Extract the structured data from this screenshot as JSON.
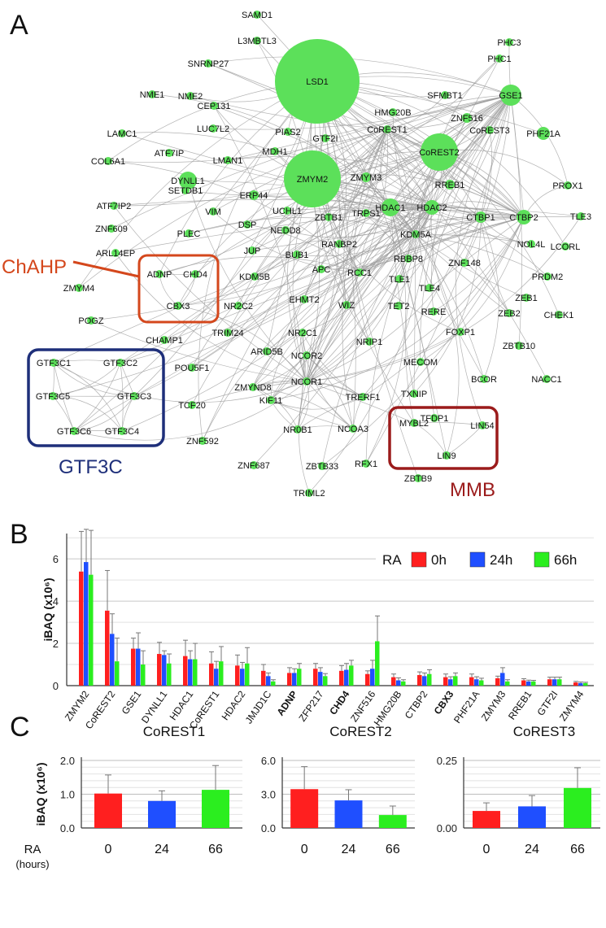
{
  "figure": {
    "panel_a": "A",
    "panel_b": "B",
    "panel_c": "C"
  },
  "network": {
    "nodes": [
      "SAMD1",
      "L3MBTL3",
      "SNRNP27",
      "NME1",
      "NME2",
      "CEP131",
      "LUC7L2",
      "LAMC1",
      "COL6A1",
      "ATF7IP",
      "LMAN1",
      "MDH1",
      "PIAS2",
      "GTF2I",
      "LSD1",
      "HMG20B",
      "SFMBT1",
      "PHC1",
      "PHC3",
      "GSE1",
      "ZNF516",
      "CoREST1",
      "CoREST2",
      "CoREST3",
      "PHF21A",
      "DYNLL1",
      "ZMYM2",
      "ZMYM3",
      "RREB1",
      "ATF7IP2",
      "SETDB1",
      "ERP44",
      "VIM",
      "UCHL1",
      "ZBTB1",
      "TRPS1",
      "HDAC1",
      "HDAC2",
      "PROX1",
      "CTBP1",
      "CTBP2",
      "TLE3",
      "ZNF609",
      "PLEC",
      "DSP",
      "NEDD8",
      "KDM5A",
      "NOL4L",
      "LCORL",
      "ARL14EP",
      "JUP",
      "BUB1",
      "RANBP2",
      "RBBP8",
      "ZNF148",
      "PRDM2",
      "ADNP",
      "CHD4",
      "KDM5B",
      "APC",
      "RCC1",
      "TLE1",
      "TLE4",
      "ZEB1",
      "ZMYM4",
      "CBX3",
      "NR2C2",
      "EHMT2",
      "WIZ",
      "TET2",
      "RERE",
      "ZEB2",
      "CHEK1",
      "POGZ",
      "TRIM24",
      "NR2C1",
      "NRIP1",
      "FOXP1",
      "ZBTB10",
      "CHAMP1",
      "ARID5B",
      "NCOR2",
      "MECOM",
      "BCOR",
      "NACC1",
      "GTF3C1",
      "GTF3C2",
      "GTF3C5",
      "GTF3C3",
      "GTF3C6",
      "GTF3C4",
      "POU5F1",
      "ZMYND8",
      "NCOR1",
      "TRERF1",
      "TXNIP",
      "TFDP1",
      "TCF20",
      "KIF11",
      "NR0B1",
      "NCOA3",
      "MYBL2",
      "LIN54",
      "LIN9",
      "ZNF592",
      "ZNF687",
      "ZBTB33",
      "RFX1",
      "ZBTB9",
      "TRIML2"
    ],
    "complexes": {
      "chahp": "ChAHP",
      "gtf3c": "GTF3C",
      "mmb": "MMB"
    }
  },
  "chart_data": [
    {
      "type": "bar",
      "panel": "B",
      "ylabel": "iBAQ (x10⁶)",
      "ylim": [
        0,
        7.2
      ],
      "yticks": [
        0,
        2,
        4,
        6
      ],
      "legend_title": "RA",
      "legend_position": "top-right",
      "categories": [
        "ZMYM2",
        "CoREST2",
        "GSE1",
        "DYNLL1",
        "HDAC1",
        "CoREST1",
        "HDAC2",
        "JMJD1C",
        "ADNP",
        "ZFP217",
        "CHD4",
        "ZNF516",
        "HMG20B",
        "CTBP2",
        "CBX3",
        "PHF21A",
        "ZMYM3",
        "RREB1",
        "GTF2I",
        "ZMYM4"
      ],
      "highlighted": [
        "ADNP",
        "CHD4",
        "CBX3"
      ],
      "series": [
        {
          "name": "0h",
          "color": "#ff1f1f",
          "values": [
            5.4,
            3.55,
            1.75,
            1.5,
            1.4,
            1.05,
            0.95,
            0.7,
            0.6,
            0.8,
            0.7,
            0.55,
            0.4,
            0.5,
            0.4,
            0.4,
            0.35,
            0.25,
            0.3,
            0.15
          ],
          "errors": [
            1.9,
            1.9,
            0.5,
            0.55,
            0.75,
            0.55,
            0.5,
            0.3,
            0.25,
            0.25,
            0.25,
            0.15,
            0.15,
            0.15,
            0.15,
            0.15,
            0.1,
            0.08,
            0.1,
            0.05
          ]
        },
        {
          "name": "24h",
          "color": "#1f4fff",
          "values": [
            5.85,
            2.45,
            1.75,
            1.45,
            1.25,
            0.8,
            0.8,
            0.45,
            0.6,
            0.65,
            0.75,
            0.8,
            0.25,
            0.45,
            0.3,
            0.3,
            0.6,
            0.2,
            0.3,
            0.12
          ],
          "errors": [
            1.55,
            0.95,
            0.75,
            0.2,
            0.4,
            0.35,
            0.3,
            0.15,
            0.2,
            0.2,
            0.3,
            0.4,
            0.12,
            0.15,
            0.12,
            0.12,
            0.25,
            0.06,
            0.1,
            0.05
          ]
        },
        {
          "name": "66h",
          "color": "#2bee1f",
          "values": [
            5.25,
            1.15,
            1.0,
            1.05,
            1.25,
            1.15,
            1.05,
            0.2,
            0.8,
            0.45,
            0.95,
            2.1,
            0.2,
            0.55,
            0.45,
            0.25,
            0.2,
            0.2,
            0.3,
            0.12
          ],
          "errors": [
            2.1,
            1.1,
            0.65,
            0.45,
            0.75,
            0.7,
            0.75,
            0.08,
            0.25,
            0.12,
            0.25,
            1.2,
            0.08,
            0.2,
            0.15,
            0.1,
            0.08,
            0.05,
            0.1,
            0.04
          ]
        }
      ]
    },
    {
      "type": "bar",
      "panel": "C",
      "title": "CoREST1",
      "ylabel": "iBAQ (x10⁶)",
      "xlabel": "RA (hours)",
      "categories": [
        "0",
        "24",
        "66"
      ],
      "ylim": [
        0,
        2.0
      ],
      "yticks": [
        "0.0",
        "1.0",
        "2.0"
      ],
      "colors": [
        "#ff1f1f",
        "#1f4fff",
        "#2bee1f"
      ],
      "values": [
        1.02,
        0.8,
        1.13
      ],
      "errors": [
        0.55,
        0.3,
        0.72
      ]
    },
    {
      "type": "bar",
      "panel": "C",
      "title": "CoREST2",
      "categories": [
        "0",
        "24",
        "66"
      ],
      "ylim": [
        0,
        6.0
      ],
      "yticks": [
        "0.0",
        "3.0",
        "6.0"
      ],
      "colors": [
        "#ff1f1f",
        "#1f4fff",
        "#2bee1f"
      ],
      "values": [
        3.45,
        2.45,
        1.15
      ],
      "errors": [
        2.0,
        0.95,
        0.8
      ]
    },
    {
      "type": "bar",
      "panel": "C",
      "title": "CoREST3",
      "categories": [
        "0",
        "24",
        "66"
      ],
      "ylim": [
        0,
        0.25
      ],
      "yticks": [
        "0.00",
        "",
        "0.25"
      ],
      "colors": [
        "#ff1f1f",
        "#1f4fff",
        "#2bee1f"
      ],
      "values": [
        0.063,
        0.08,
        0.148
      ],
      "errors": [
        0.03,
        0.04,
        0.075
      ]
    }
  ]
}
